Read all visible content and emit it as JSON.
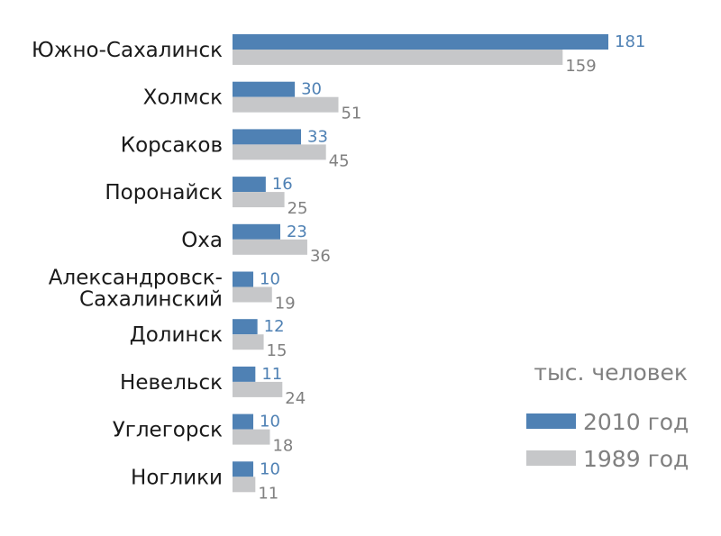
{
  "chart_data": {
    "type": "bar",
    "orientation": "horizontal",
    "categories": [
      "Южно-Сахалинск",
      "Холмск",
      "Корсаков",
      "Поронайск",
      "Оха",
      "Александровск-\nСахалинский",
      "Долинск",
      "Невельск",
      "Углегорск",
      "Ноглики"
    ],
    "series": [
      {
        "name": "2010 год",
        "color": "#4f81b4",
        "values": [
          181,
          30,
          33,
          16,
          23,
          10,
          12,
          11,
          10,
          10
        ]
      },
      {
        "name": "1989 год",
        "color": "#c6c7c9",
        "values": [
          159,
          51,
          45,
          25,
          36,
          19,
          15,
          24,
          18,
          11
        ]
      }
    ],
    "unit_label": "тыс. человек",
    "xlim": [
      0,
      181
    ],
    "grid": false,
    "data_labels": true,
    "legend_position": "bottom-right",
    "label_colors": {
      "2010 год": "#4f81b4",
      "1989 год": "#808080"
    }
  }
}
